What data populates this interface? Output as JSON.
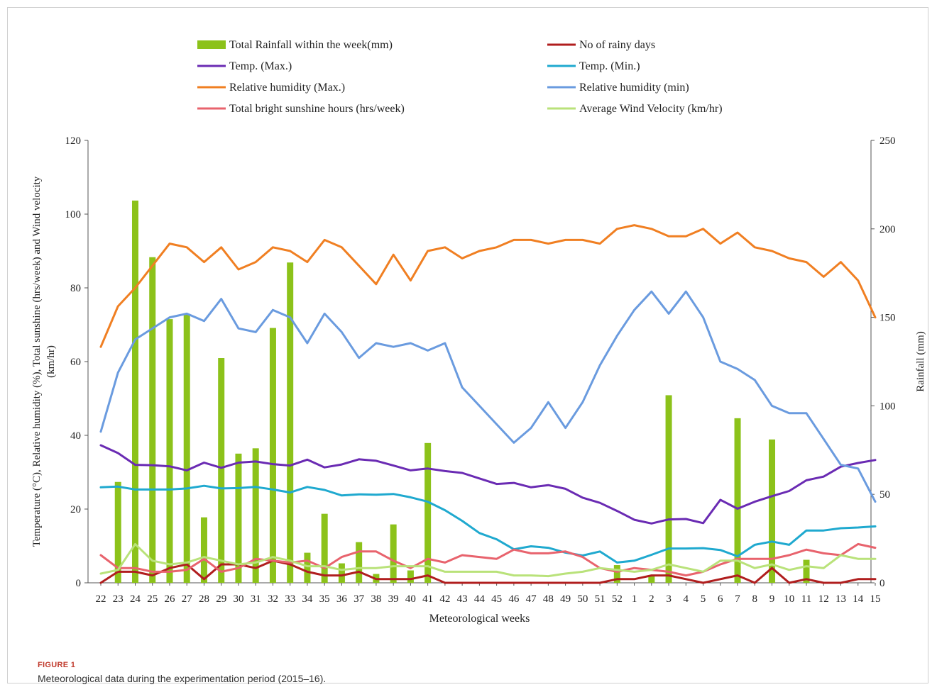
{
  "figure": {
    "label": "FIGURE 1",
    "caption": "Meteorological data during the experimentation period (2015–16)."
  },
  "chart_data": {
    "type": "bar+line",
    "xlabel": "Meteorological weeks",
    "ylabel_left": "Temperature (°C), Relative humidity (%), Total sunshine (hrs/week) and Wind velocity (km/hr)",
    "ylabel_right": "Rainfall (mm)",
    "ylim_left": [
      0,
      120
    ],
    "yticks_left": [
      "0",
      "20",
      "40",
      "60",
      "80",
      "100",
      "120"
    ],
    "ylim_right": [
      0,
      250
    ],
    "yticks_right": [
      "0",
      "50",
      "100",
      "150",
      "200",
      "250"
    ],
    "legend_position": "top",
    "categories": [
      "22",
      "23",
      "24",
      "25",
      "26",
      "27",
      "28",
      "29",
      "30",
      "31",
      "32",
      "33",
      "34",
      "35",
      "36",
      "37",
      "38",
      "39",
      "40",
      "41",
      "42",
      "43",
      "44",
      "45",
      "46",
      "47",
      "48",
      "49",
      "50",
      "51",
      "52",
      "1",
      "2",
      "3",
      "4",
      "5",
      "6",
      "7",
      "8",
      "9",
      "10",
      "11",
      "12",
      "13",
      "14",
      "15"
    ],
    "bars": {
      "name": "Total Rainfall within the week(mm)",
      "axis": "right",
      "color": "#8cc21a",
      "values": [
        0,
        57,
        216,
        184,
        149,
        152,
        37,
        127,
        73,
        76,
        144,
        181,
        17,
        39,
        11,
        23,
        5,
        33,
        7,
        79,
        0,
        0,
        0,
        0,
        0,
        0,
        0,
        0,
        0,
        0,
        10,
        0,
        4,
        106,
        0,
        0,
        0,
        93,
        0,
        81,
        0,
        13,
        0,
        0,
        0,
        0
      ]
    },
    "series": [
      {
        "name": "No of rainy days",
        "color": "#b01e1e",
        "axis": "left",
        "values": [
          0,
          3,
          3,
          2,
          4,
          5,
          1,
          5,
          5,
          4,
          6,
          5,
          3,
          2,
          2,
          3,
          1,
          1,
          1,
          2,
          0,
          0,
          0,
          0,
          0,
          0,
          0,
          0,
          0,
          0,
          1,
          1,
          2,
          2,
          1,
          0,
          1,
          2,
          0,
          4,
          0,
          1,
          0,
          0,
          1,
          1
        ]
      },
      {
        "name": "Temp. (Max.)",
        "color": "#6a2bb3",
        "axis": "left",
        "values": [
          37.3,
          35.2,
          32,
          31.9,
          31.6,
          30.5,
          32.6,
          31.2,
          32.6,
          32.9,
          32.2,
          31.8,
          33.4,
          31.3,
          32.1,
          33.5,
          33.1,
          31.8,
          30.5,
          31,
          30.3,
          29.8,
          28.3,
          26.8,
          27.1,
          25.9,
          26.5,
          25.5,
          23.1,
          21.7,
          19.5,
          17.1,
          16.1,
          17.2,
          17.3,
          16.2,
          22.5,
          20.1,
          22,
          23.5,
          24.9,
          27.8,
          28.8,
          31.5,
          32.5,
          33.3
        ]
      },
      {
        "name": "Temp. (Min.)",
        "color": "#1fa9cf",
        "axis": "left",
        "values": [
          25.9,
          26.1,
          25.3,
          25.3,
          25.3,
          25.6,
          26.3,
          25.6,
          25.7,
          26,
          25.3,
          24.5,
          26,
          25.2,
          23.7,
          24,
          23.9,
          24.1,
          23.2,
          22,
          19.7,
          16.8,
          13.5,
          11.8,
          9.1,
          9.9,
          9.5,
          8.2,
          7.4,
          8.5,
          5.5,
          6,
          7.6,
          9.3,
          9.3,
          9.4,
          8.9,
          7.2,
          10.3,
          11.2,
          10.3,
          14.2,
          14.2,
          14.8,
          15,
          15.3
        ]
      },
      {
        "name": "Relative humidity (Max.)",
        "color": "#f07f22",
        "axis": "left",
        "values": [
          64,
          75,
          80,
          86,
          92,
          91,
          87,
          91,
          85,
          87,
          91,
          90,
          87,
          93,
          91,
          86,
          81,
          89,
          82,
          90,
          91,
          88,
          90,
          91,
          93,
          93,
          92,
          93,
          93,
          92,
          96,
          97,
          96,
          94,
          94,
          96,
          92,
          95,
          91,
          90,
          88,
          87,
          83,
          87,
          82,
          72
        ]
      },
      {
        "name": "Relative humidity (min)",
        "color": "#6a9bdf",
        "axis": "left",
        "values": [
          41,
          57,
          66,
          69,
          72,
          73,
          71,
          77,
          69,
          68,
          74,
          72,
          65,
          73,
          68,
          61,
          65,
          64,
          65,
          63,
          65,
          53,
          48,
          43,
          38,
          42,
          49,
          42,
          49,
          59,
          67,
          74,
          79,
          73,
          79,
          72,
          60,
          58,
          55,
          48,
          46,
          46,
          39,
          32,
          31,
          22
        ]
      },
      {
        "name": "Total bright sunshine hours (hrs/week)",
        "color": "#e8636d",
        "axis": "left",
        "values": [
          7.5,
          4,
          4,
          3,
          3,
          3.5,
          6.5,
          3,
          4,
          6.5,
          6,
          5.5,
          6,
          4,
          7,
          8.5,
          8.5,
          6,
          4,
          6.5,
          5.5,
          7.5,
          7,
          6.5,
          9,
          8,
          8,
          8.5,
          7,
          4,
          3,
          4,
          3.5,
          3,
          2,
          3,
          5,
          6.5,
          6.5,
          6.5,
          7.5,
          9,
          8,
          7.5,
          10.5,
          9.5
        ]
      },
      {
        "name": "Average Wind Velocity (km/hr)",
        "color": "#b9e27a",
        "axis": "left",
        "values": [
          2.5,
          3.5,
          10.5,
          6,
          5,
          5.5,
          7,
          6,
          5,
          5.5,
          7,
          6,
          4.5,
          4.5,
          3.5,
          4,
          4,
          4.5,
          4.5,
          4.5,
          3,
          3,
          3,
          3,
          2,
          2,
          1.8,
          2.5,
          3,
          4,
          3.5,
          3,
          3.5,
          5,
          4,
          3,
          6,
          6,
          4,
          5,
          3.5,
          4.5,
          4,
          7.5,
          6.5,
          6.5
        ]
      }
    ]
  }
}
